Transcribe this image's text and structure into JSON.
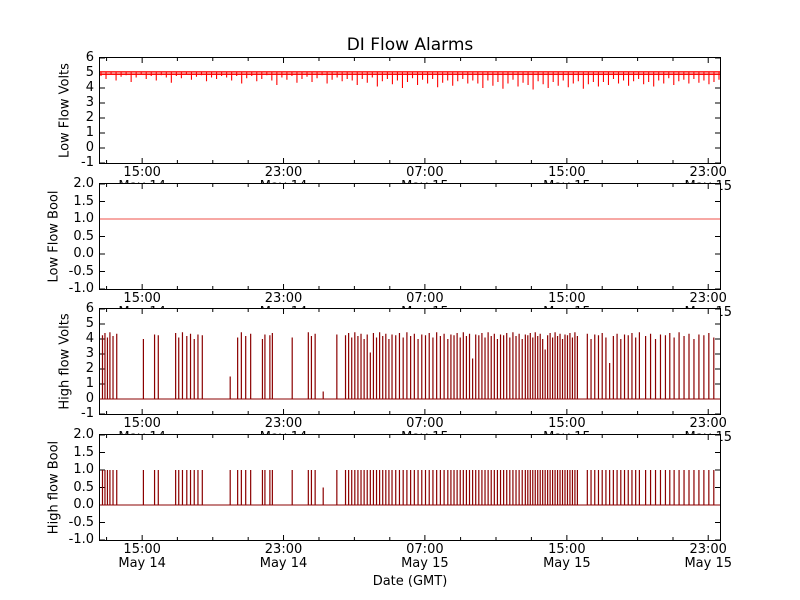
{
  "title": "DI Flow Alarms",
  "xlabel": "Date (GMT)",
  "colors": {
    "signal_red": "#ff0000",
    "pale_red": "#f7a8a4",
    "dark_red": "#8b0000",
    "axis": "#000000"
  },
  "x_axis": {
    "major_tick_positions": [
      0.068,
      0.296,
      0.524,
      0.753,
      0.981
    ],
    "minor_tick_positions": [
      0.0106,
      0.1248,
      0.1819,
      0.239,
      0.3532,
      0.4103,
      0.4674,
      0.5816,
      0.6387,
      0.6958,
      0.81,
      0.8671,
      0.9242
    ],
    "time_labels": [
      "15:00",
      "23:00",
      "07:00",
      "15:00",
      "23:00"
    ],
    "date_labels": [
      "May 14",
      "May 14",
      "May 15",
      "May 15",
      "May 15"
    ]
  },
  "chart_data": [
    {
      "type": "line",
      "ylabel": "Low Flow Volts",
      "ylim": [
        -1,
        6
      ],
      "ytick_vals": [
        6,
        5,
        4,
        3,
        2,
        1,
        0,
        -1
      ],
      "ytick_labels": [
        "6",
        "5",
        "4",
        "3",
        "2",
        "1",
        "0",
        "-1"
      ],
      "series": {
        "name": "low-flow-volts",
        "kind": "noisy-band",
        "baseline": 5.0,
        "band": [
          4.87,
          5.12
        ],
        "dip_values": [
          4.8,
          4.6,
          4.9,
          4.5,
          4.75,
          4.85,
          4.4,
          4.7,
          4.9,
          4.6,
          4.8,
          4.5,
          4.85,
          4.7,
          4.35,
          4.8,
          4.65,
          4.9,
          4.55,
          4.75,
          4.85,
          4.45,
          4.7,
          4.6,
          4.8,
          4.7,
          4.5,
          4.8,
          4.3,
          4.65,
          4.8,
          4.45,
          4.6,
          4.85,
          4.5,
          4.2,
          4.7,
          4.55,
          4.8,
          4.35,
          4.6,
          4.75,
          4.4,
          4.65,
          4.85,
          4.3,
          4.55,
          4.7,
          4.45,
          4.6,
          4.5,
          4.2,
          4.6,
          4.35,
          4.7,
          4.1,
          4.45,
          4.6,
          4.25,
          4.5,
          4.0,
          4.4,
          4.65,
          4.2,
          4.55,
          4.3,
          4.6,
          4.05,
          4.35,
          4.5,
          4.15,
          4.45,
          4.6,
          4.3,
          4.5,
          4.3,
          4.0,
          4.5,
          4.15,
          4.4,
          3.95,
          4.3,
          4.55,
          4.1,
          4.35,
          4.2,
          3.9,
          4.45,
          4.25,
          4.0,
          4.4,
          4.15,
          4.5,
          4.05,
          4.3,
          4.45,
          3.95,
          4.25,
          4.4,
          4.1,
          4.4,
          4.2,
          4.6,
          4.3,
          4.5,
          4.15,
          4.45,
          4.6,
          4.25,
          4.4,
          4.1,
          4.5,
          4.3,
          4.65,
          4.2,
          4.45,
          4.55,
          4.3,
          4.6,
          4.35,
          4.5,
          4.25,
          4.4,
          4.55
        ]
      }
    },
    {
      "type": "line",
      "ylabel": "Low Flow Bool",
      "ylim": [
        -1,
        2
      ],
      "ytick_vals": [
        2,
        1.5,
        1,
        0.5,
        0,
        -0.5,
        -1
      ],
      "ytick_labels": [
        "2.0",
        "1.5",
        "1.0",
        "0.5",
        "0.0",
        "-0.5",
        "-1.0"
      ],
      "series": {
        "name": "low-flow-bool",
        "kind": "hline",
        "value": 1.0
      }
    },
    {
      "type": "line",
      "ylabel": "High flow Volts",
      "ylim": [
        -1,
        6
      ],
      "ytick_vals": [
        6,
        5,
        4,
        3,
        2,
        1,
        0,
        -1
      ],
      "ytick_labels": [
        "6",
        "5",
        "4",
        "3",
        "2",
        "1",
        "0",
        "-1"
      ],
      "series": {
        "name": "high-flow-volts",
        "kind": "spikes",
        "baseline": 0.0,
        "positions": [
          0.004,
          0.008,
          0.012,
          0.016,
          0.021,
          0.027,
          0.07,
          0.088,
          0.094,
          0.122,
          0.127,
          0.133,
          0.14,
          0.146,
          0.152,
          0.158,
          0.165,
          0.21,
          0.222,
          0.228,
          0.235,
          0.243,
          0.262,
          0.266,
          0.274,
          0.278,
          0.31,
          0.336,
          0.341,
          0.347,
          0.36,
          0.382,
          0.396,
          0.401,
          0.406,
          0.411,
          0.416,
          0.421,
          0.426,
          0.431,
          0.436,
          0.441,
          0.446,
          0.451,
          0.456,
          0.461,
          0.466,
          0.471,
          0.477,
          0.483,
          0.489,
          0.495,
          0.501,
          0.507,
          0.513,
          0.519,
          0.525,
          0.531,
          0.537,
          0.543,
          0.549,
          0.555,
          0.561,
          0.566,
          0.571,
          0.576,
          0.581,
          0.586,
          0.591,
          0.596,
          0.601,
          0.606,
          0.611,
          0.616,
          0.621,
          0.626,
          0.631,
          0.636,
          0.641,
          0.646,
          0.651,
          0.656,
          0.661,
          0.666,
          0.671,
          0.676,
          0.681,
          0.686,
          0.69,
          0.694,
          0.698,
          0.702,
          0.706,
          0.71,
          0.714,
          0.718,
          0.722,
          0.726,
          0.73,
          0.734,
          0.738,
          0.742,
          0.746,
          0.75,
          0.754,
          0.758,
          0.762,
          0.766,
          0.77,
          0.786,
          0.792,
          0.798,
          0.804,
          0.81,
          0.816,
          0.822,
          0.828,
          0.834,
          0.84,
          0.846,
          0.852,
          0.858,
          0.864,
          0.87,
          0.88,
          0.888,
          0.896,
          0.904,
          0.912,
          0.919,
          0.926,
          0.934,
          0.942,
          0.95,
          0.958,
          0.966,
          0.974,
          0.982,
          0.99
        ],
        "height_cycle": [
          4.25,
          4.4,
          4.1,
          4.45,
          4.2,
          4.35,
          4.0,
          4.3
        ],
        "height_overrides": {
          "17": 1.5,
          "30": 0.5,
          "40": 3.1,
          "70": 2.7,
          "95": 3.3,
          "115": 2.4
        }
      }
    },
    {
      "type": "line",
      "ylabel": "High flow Bool",
      "ylim": [
        -1,
        2
      ],
      "ytick_vals": [
        2,
        1.5,
        1,
        0.5,
        0,
        -0.5,
        -1
      ],
      "ytick_labels": [
        "2.0",
        "1.5",
        "1.0",
        "0.5",
        "0.0",
        "-0.5",
        "-1.0"
      ],
      "series": {
        "name": "high-flow-bool",
        "kind": "spikes",
        "baseline": 0.0,
        "positions_from": 2,
        "height_cycle": [
          1.0
        ],
        "height_overrides": {
          "30": 0.5
        }
      }
    }
  ]
}
